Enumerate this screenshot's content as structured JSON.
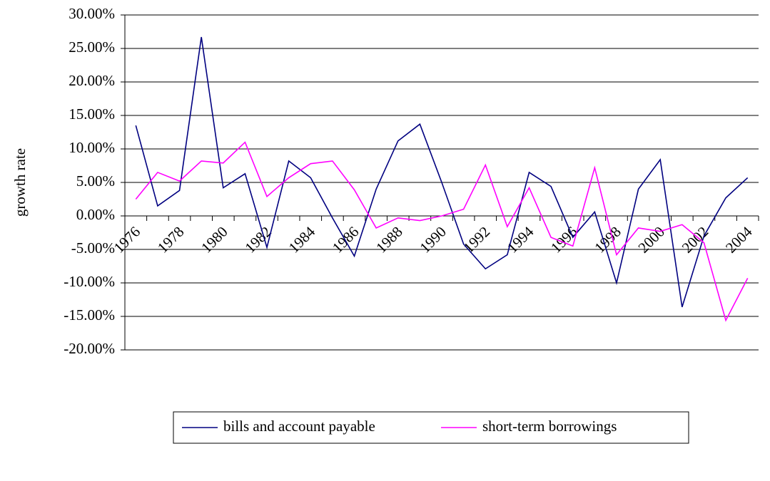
{
  "chart_data": {
    "type": "line",
    "y_label": "growth rate",
    "categories": [
      "1976",
      null,
      "1978",
      null,
      "1980",
      null,
      "1982",
      null,
      "1984",
      null,
      "1986",
      null,
      "1988",
      null,
      "1990",
      null,
      "1992",
      null,
      "1994",
      null,
      "1996",
      null,
      "1998",
      null,
      "2000",
      null,
      "2002",
      null,
      "2004"
    ],
    "series": [
      {
        "name": "bills and account payable",
        "color": "#000080",
        "values": [
          13.5,
          1.5,
          3.8,
          26.7,
          4.2,
          6.3,
          -4.7,
          8.2,
          5.7,
          -0.3,
          -6,
          4,
          11.2,
          13.7,
          5,
          -4.2,
          -7.9,
          -5.8,
          6.5,
          4.4,
          -3.2,
          0.6,
          -10,
          4,
          8.4,
          -13.6,
          -3,
          2.7,
          5.7
        ]
      },
      {
        "name": "short-term borrowings",
        "color": "#ff00ff",
        "values": [
          2.5,
          6.5,
          5.2,
          8.2,
          7.9,
          11,
          2.9,
          5.7,
          7.8,
          8.2,
          3.9,
          -1.8,
          -0.3,
          -0.7,
          0,
          1,
          7.6,
          -1.6,
          4.2,
          -3.2,
          -4.5,
          7.2,
          -5.8,
          -1.8,
          -2.3,
          -1.3,
          -4,
          -15.6,
          -9.3
        ]
      }
    ],
    "ylim": [
      -20,
      30
    ],
    "yticks": [
      {
        "value": -20,
        "label": "-20.00%"
      },
      {
        "value": -15,
        "label": "-15.00%"
      },
      {
        "value": -10,
        "label": "-10.00%"
      },
      {
        "value": -5,
        "label": "-5.00%"
      },
      {
        "value": 0,
        "label": "0.00%"
      },
      {
        "value": 5,
        "label": "5.00%"
      },
      {
        "value": 10,
        "label": "10.00%"
      },
      {
        "value": 15,
        "label": "15.00%"
      },
      {
        "value": 20,
        "label": "20.00%"
      },
      {
        "value": 25,
        "label": "25.00%"
      },
      {
        "value": 30,
        "label": "30.00%"
      }
    ],
    "grid": true,
    "legend": "bottom"
  }
}
